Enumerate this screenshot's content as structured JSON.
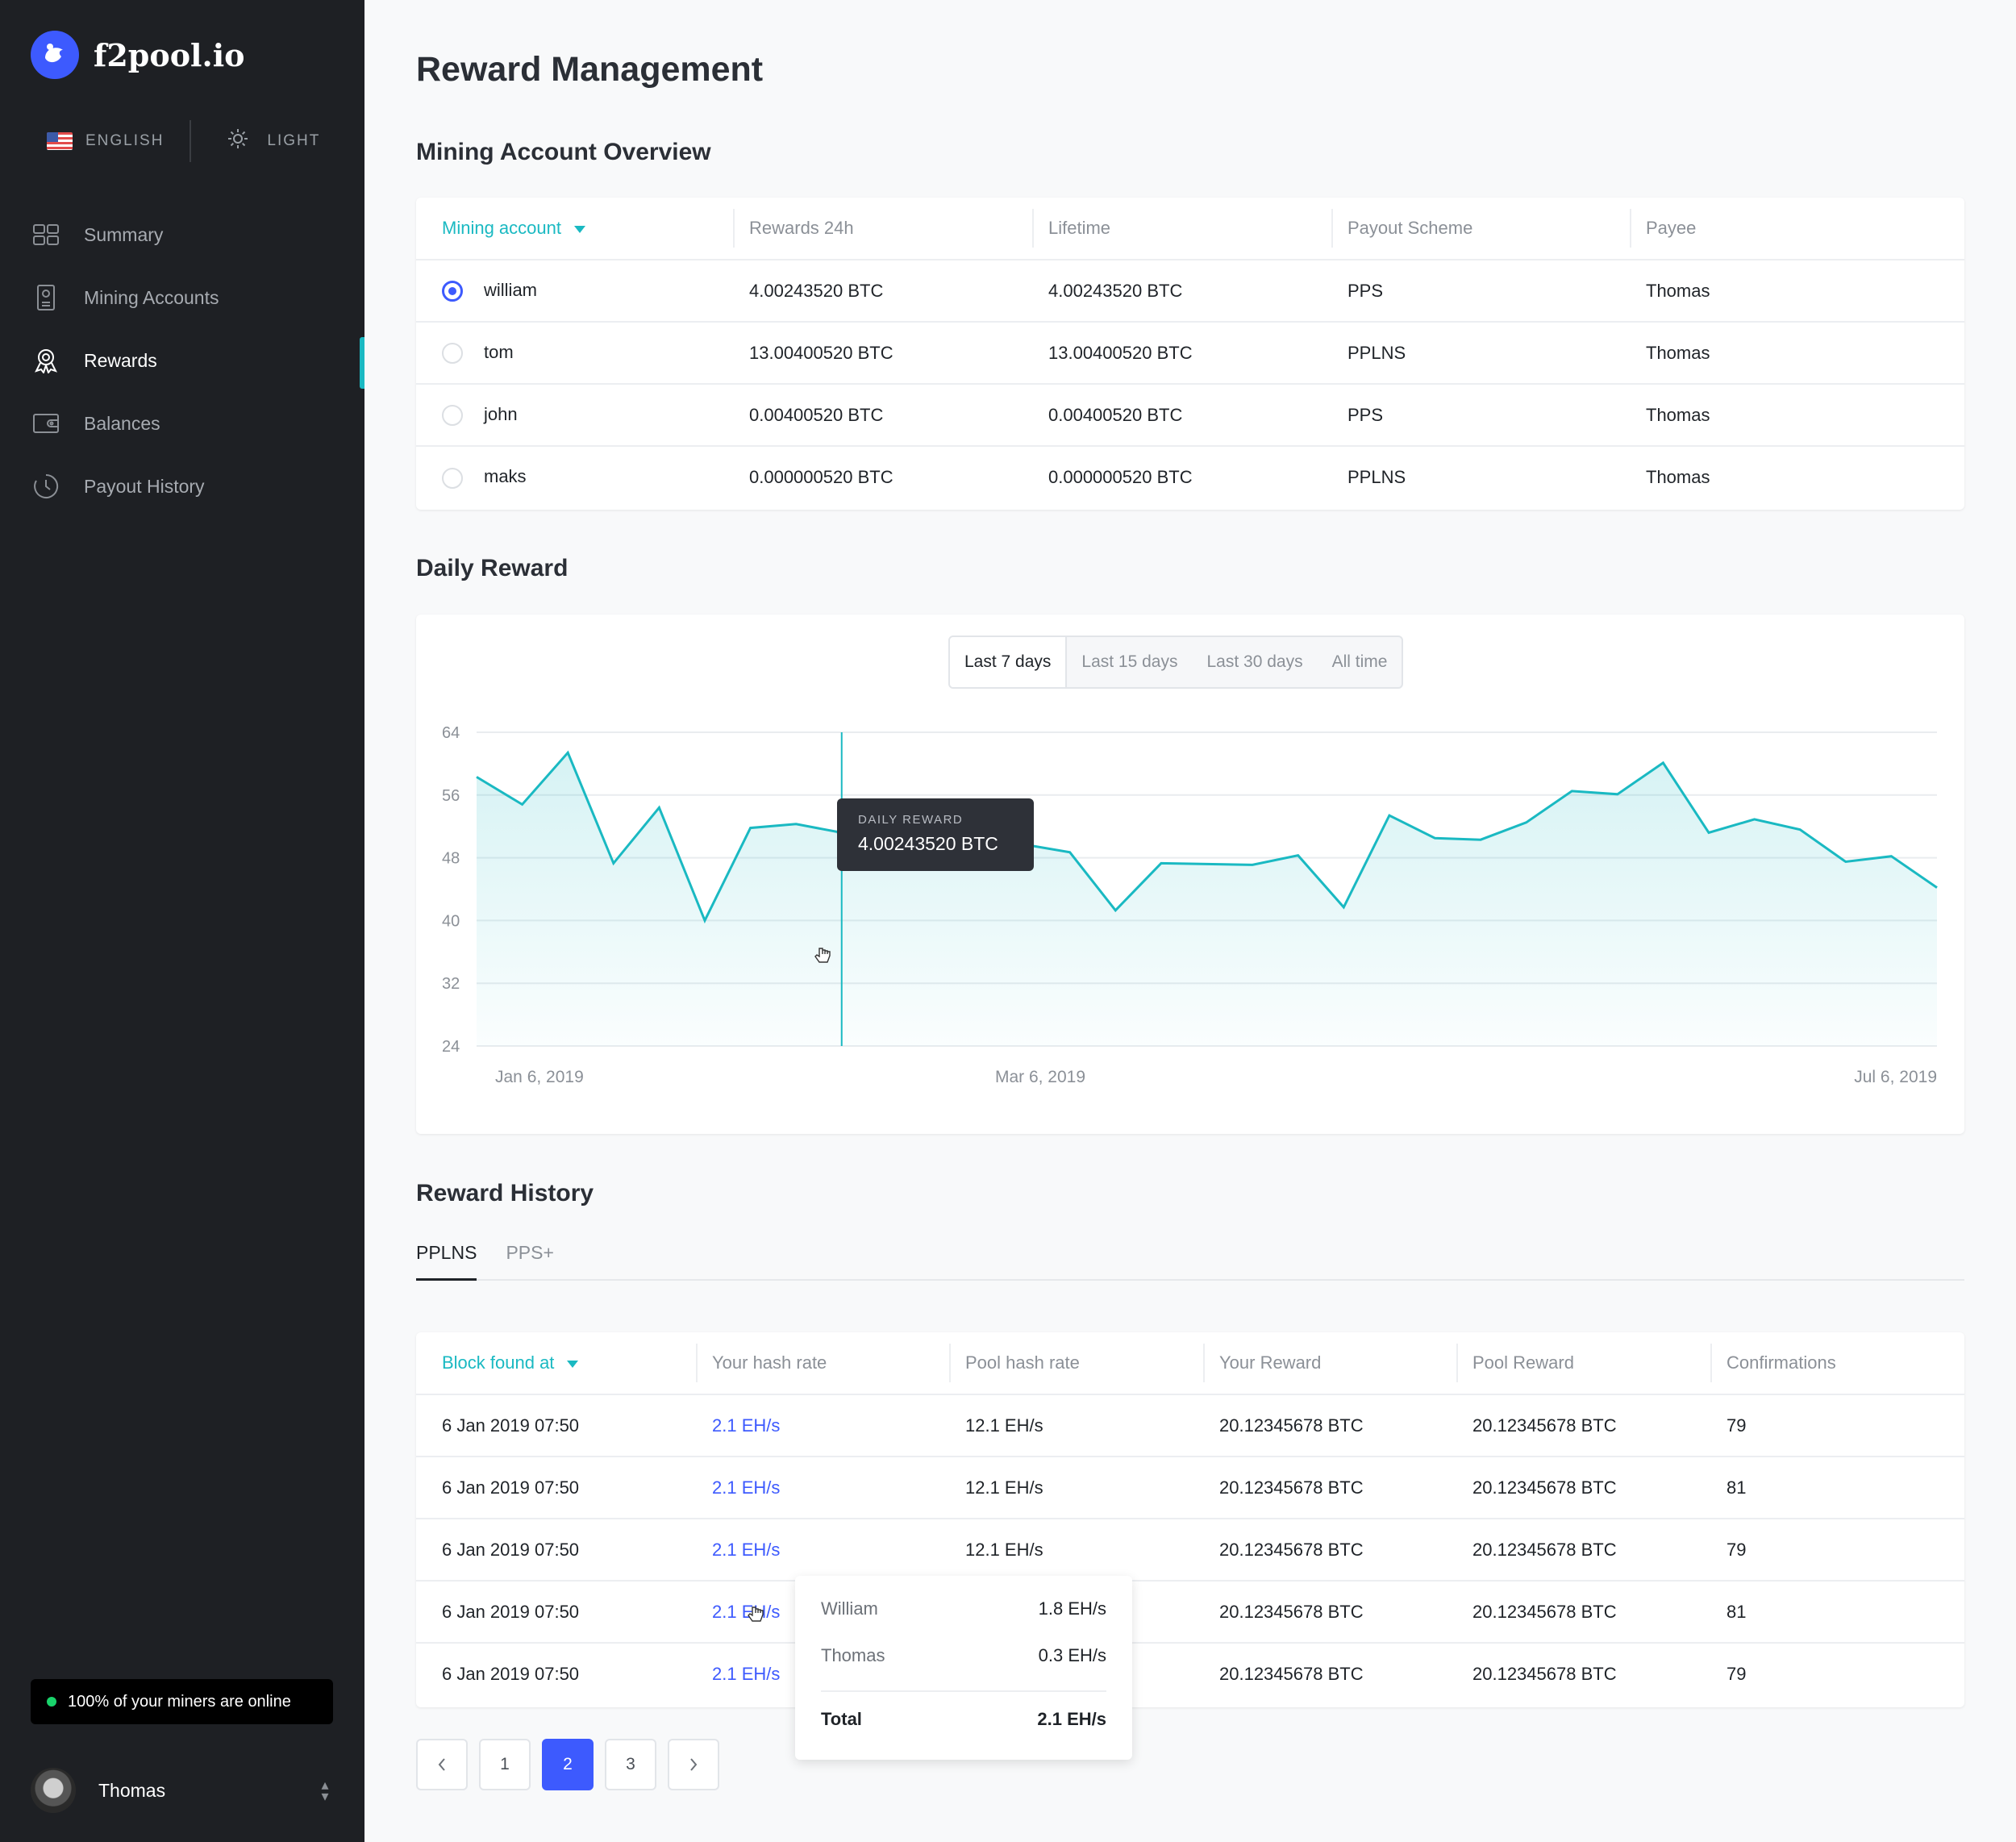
{
  "brand": {
    "name": "f2pool.io"
  },
  "prefs": {
    "language": "ENGLISH",
    "theme": "LIGHT"
  },
  "nav": [
    {
      "label": "Summary",
      "icon": "summary-icon"
    },
    {
      "label": "Mining Accounts",
      "icon": "mining-accounts-icon"
    },
    {
      "label": "Rewards",
      "icon": "rewards-icon",
      "active": true
    },
    {
      "label": "Balances",
      "icon": "wallet-icon"
    },
    {
      "label": "Payout History",
      "icon": "history-icon"
    }
  ],
  "status": {
    "online_text": "100% of your miners are online"
  },
  "user": {
    "name": "Thomas"
  },
  "page": {
    "title": "Reward Management"
  },
  "overview": {
    "title": "Mining Account Overview",
    "headers": [
      "Mining account",
      "Rewards 24h",
      "Lifetime",
      "Payout Scheme",
      "Payee"
    ],
    "rows": [
      {
        "account": "william",
        "rewards24h": "4.00243520 BTC",
        "lifetime": "4.00243520 BTC",
        "scheme": "PPS",
        "payee": "Thomas",
        "selected": true
      },
      {
        "account": "tom",
        "rewards24h": "13.00400520 BTC",
        "lifetime": "13.00400520 BTC",
        "scheme": "PPLNS",
        "payee": "Thomas",
        "selected": false
      },
      {
        "account": "john",
        "rewards24h": "0.00400520 BTC",
        "lifetime": "0.00400520 BTC",
        "scheme": "PPS",
        "payee": "Thomas",
        "selected": false
      },
      {
        "account": "maks",
        "rewards24h": "0.000000520 BTC",
        "lifetime": "0.000000520 BTC",
        "scheme": "PPLNS",
        "payee": "Thomas",
        "selected": false
      }
    ]
  },
  "daily": {
    "title": "Daily Reward",
    "ranges": [
      "Last 7 days",
      "Last 15 days",
      "Last 30 days",
      "All time"
    ],
    "active_range": "Last 7 days",
    "tooltip_label": "DAILY REWARD",
    "tooltip_value": "4.00243520 BTC"
  },
  "chart_data": {
    "type": "area",
    "x_tick_labels": [
      "Jan 6, 2019",
      "Mar 6, 2019",
      "Jul 6, 2019"
    ],
    "yticks": [
      64,
      56,
      48,
      40,
      32,
      24
    ],
    "ylim": [
      24,
      64
    ],
    "grid": true,
    "color": "#1ab9c2",
    "series": [
      {
        "values": [
          58.3,
          54.8,
          61.4,
          47.3,
          54.4,
          40.0,
          51.8,
          52.3,
          51.2,
          51.1,
          54.3,
          53.8,
          49.7,
          48.7,
          41.3,
          47.3,
          47.2,
          47.1,
          48.3,
          41.7,
          53.4,
          50.5,
          50.3,
          52.5,
          56.5,
          56.1,
          60.1,
          51.2,
          52.9,
          51.6,
          47.5,
          48.2,
          44.2
        ]
      }
    ],
    "highlight_index": 8
  },
  "history": {
    "title": "Reward History",
    "tabs": [
      "PPLNS",
      "PPS+"
    ],
    "headers": [
      "Block found at",
      "Your hash rate",
      "Pool hash rate",
      "Your Reward",
      "Pool Reward",
      "Confirmations"
    ],
    "rows": [
      {
        "date": "6 Jan 2019  07:50",
        "your_rate": "2.1 EH/s",
        "pool_rate": "12.1 EH/s",
        "your_reward": "20.12345678 BTC",
        "pool_reward": "20.12345678 BTC",
        "confirmations": "79"
      },
      {
        "date": "6 Jan 2019  07:50",
        "your_rate": "2.1 EH/s",
        "pool_rate": "12.1 EH/s",
        "your_reward": "20.12345678 BTC",
        "pool_reward": "20.12345678 BTC",
        "confirmations": "81"
      },
      {
        "date": "6 Jan 2019  07:50",
        "your_rate": "2.1 EH/s",
        "pool_rate": "12.1 EH/s",
        "your_reward": "20.12345678 BTC",
        "pool_reward": "20.12345678 BTC",
        "confirmations": "79"
      },
      {
        "date": "6 Jan 2019  07:50",
        "your_rate": "2.1 EH/s",
        "pool_rate": "12.1 EH/s",
        "your_reward": "20.12345678 BTC",
        "pool_reward": "20.12345678 BTC",
        "confirmations": "81"
      },
      {
        "date": "6 Jan 2019  07:50",
        "your_rate": "2.1 EH/s",
        "pool_rate": "12.1 EH/s",
        "your_reward": "20.12345678 BTC",
        "pool_reward": "20.12345678 BTC",
        "confirmations": "79"
      }
    ],
    "popover": {
      "rows": [
        {
          "name": "William",
          "value": "1.8 EH/s"
        },
        {
          "name": "Thomas",
          "value": "0.3 EH/s"
        }
      ],
      "total_label": "Total",
      "total_value": "2.1 EH/s"
    }
  },
  "pagination": {
    "pages": [
      "1",
      "2",
      "3"
    ],
    "current": "2"
  }
}
